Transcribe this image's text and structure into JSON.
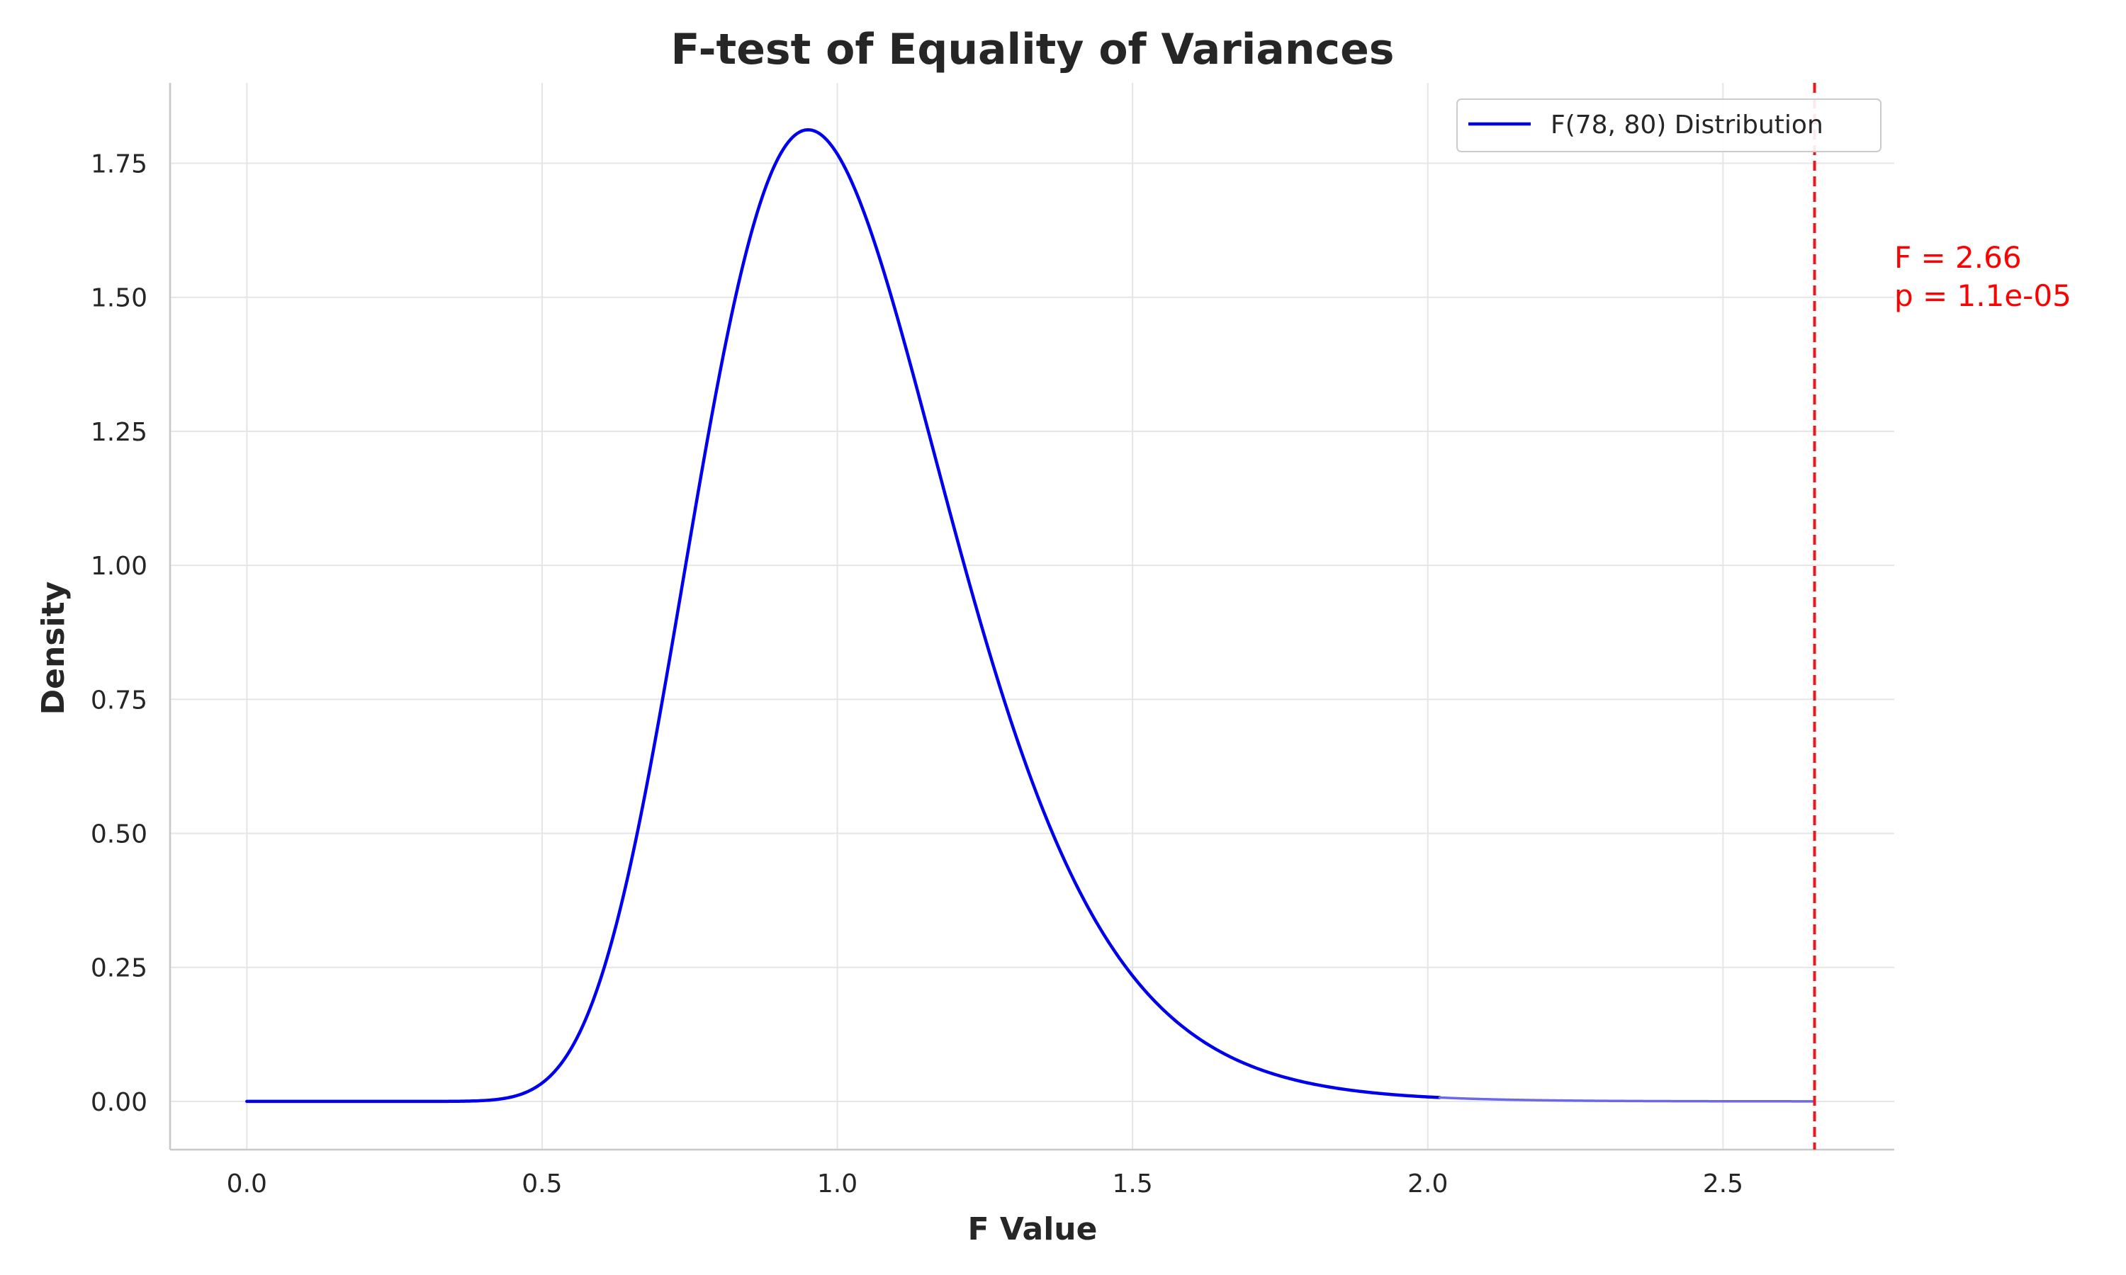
{
  "chart_data": {
    "type": "line",
    "title": "F-test of Equality of Variances",
    "xlabel": "F Value",
    "ylabel": "Density",
    "xlim": [
      -0.13,
      2.79
    ],
    "ylim": [
      -0.09,
      1.9
    ],
    "grid": true,
    "legend_position": "top-right",
    "x_ticks": [
      0.0,
      0.5,
      1.0,
      1.5,
      2.0,
      2.5
    ],
    "x_tick_labels": [
      "0.0",
      "0.5",
      "1.0",
      "1.5",
      "2.0",
      "2.5"
    ],
    "y_ticks": [
      0.0,
      0.25,
      0.5,
      0.75,
      1.0,
      1.25,
      1.5,
      1.75
    ],
    "y_tick_labels": [
      "0.00",
      "0.25",
      "0.50",
      "0.75",
      "1.00",
      "1.25",
      "1.50",
      "1.75"
    ],
    "series": [
      {
        "name": "F(78, 80) Distribution",
        "color": "#0000ee",
        "dfn": 78,
        "dfd": 80,
        "x_range": [
          0.0,
          2.02
        ]
      },
      {
        "name": "",
        "color": "#6a6ae6",
        "dfn": 78,
        "dfd": 80,
        "x_range": [
          2.02,
          2.655
        ],
        "style": "tail"
      }
    ],
    "vline": {
      "x": 2.655,
      "color": "#e41a1c",
      "style": "dashed"
    },
    "annotation": {
      "lines": [
        "F = 2.66",
        "p = 1.1e-05"
      ],
      "color": "#ff0000"
    }
  }
}
